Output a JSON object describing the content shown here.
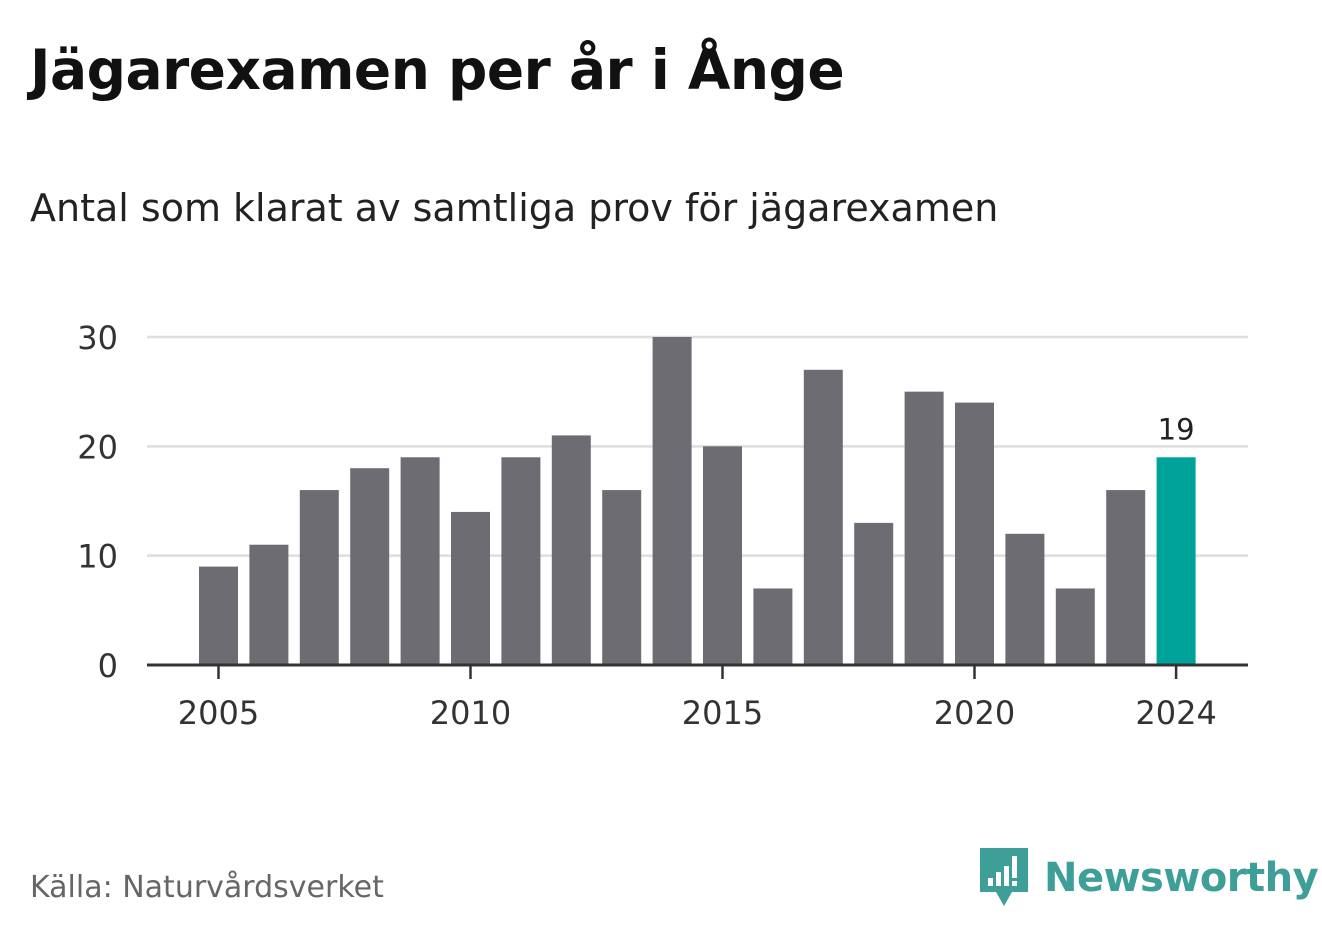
{
  "header": {
    "title": "Jägarexamen per år i Ånge",
    "subtitle": "Antal som klarat av samtliga prov för jägarexamen"
  },
  "footer": {
    "source": "Källa: Naturvårdsverket",
    "brand": "Newsworthy",
    "brand_icon": "newsworthy-logo-icon"
  },
  "colors": {
    "bar": "#6d6c72",
    "highlight": "#00a39a",
    "grid": "#dedede",
    "axis": "#333333",
    "brand": "#3e9e98"
  },
  "chart_data": {
    "type": "bar",
    "title": "Jägarexamen per år i Ånge",
    "subtitle": "Antal som klarat av samtliga prov för jägarexamen",
    "xlabel": "",
    "ylabel": "",
    "categories": [
      2005,
      2006,
      2007,
      2008,
      2009,
      2010,
      2011,
      2012,
      2013,
      2014,
      2015,
      2016,
      2017,
      2018,
      2019,
      2020,
      2021,
      2022,
      2023,
      2024
    ],
    "values": [
      9,
      11,
      16,
      18,
      19,
      14,
      19,
      21,
      16,
      30,
      20,
      7,
      27,
      13,
      25,
      24,
      12,
      7,
      16,
      19
    ],
    "ylim": [
      0,
      30
    ],
    "yticks": [
      0,
      10,
      20,
      30
    ],
    "xticks": [
      2005,
      2010,
      2015,
      2020,
      2024
    ],
    "highlight_category": 2024,
    "data_labels": [
      {
        "category": 2024,
        "label": "19"
      }
    ],
    "grid": "horizontal",
    "legend": "none"
  }
}
